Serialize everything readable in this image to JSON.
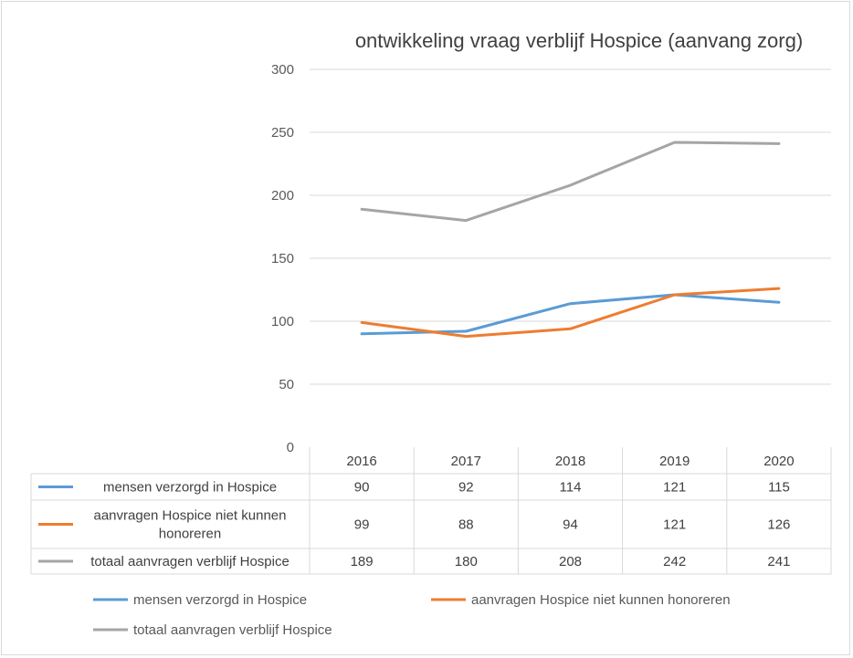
{
  "chart_data": {
    "type": "line",
    "title": "ontwikkeling vraag verblijf Hospice (aanvang zorg)",
    "categories": [
      "2016",
      "2017",
      "2018",
      "2019",
      "2020"
    ],
    "ylim": [
      0,
      300
    ],
    "yticks": [
      0,
      50,
      100,
      150,
      200,
      250,
      300
    ],
    "grid": true,
    "data_table": true,
    "legend_position": "bottom",
    "series": [
      {
        "name": "mensen verzorgd in Hospice",
        "label_lines": [
          "mensen verzorgd in Hospice"
        ],
        "color": "#5b9bd5",
        "values": [
          90,
          92,
          114,
          121,
          115
        ]
      },
      {
        "name": "aanvragen Hospice niet kunnen honoreren",
        "label_lines": [
          "aanvragen Hospice niet kunnen",
          "honoreren"
        ],
        "color": "#ed7d31",
        "values": [
          99,
          88,
          94,
          121,
          126
        ]
      },
      {
        "name": "totaal aanvragen verblijf Hospice",
        "label_lines": [
          "totaal aanvragen verblijf Hospice"
        ],
        "color": "#a5a5a5",
        "values": [
          189,
          180,
          208,
          242,
          241
        ]
      }
    ]
  }
}
